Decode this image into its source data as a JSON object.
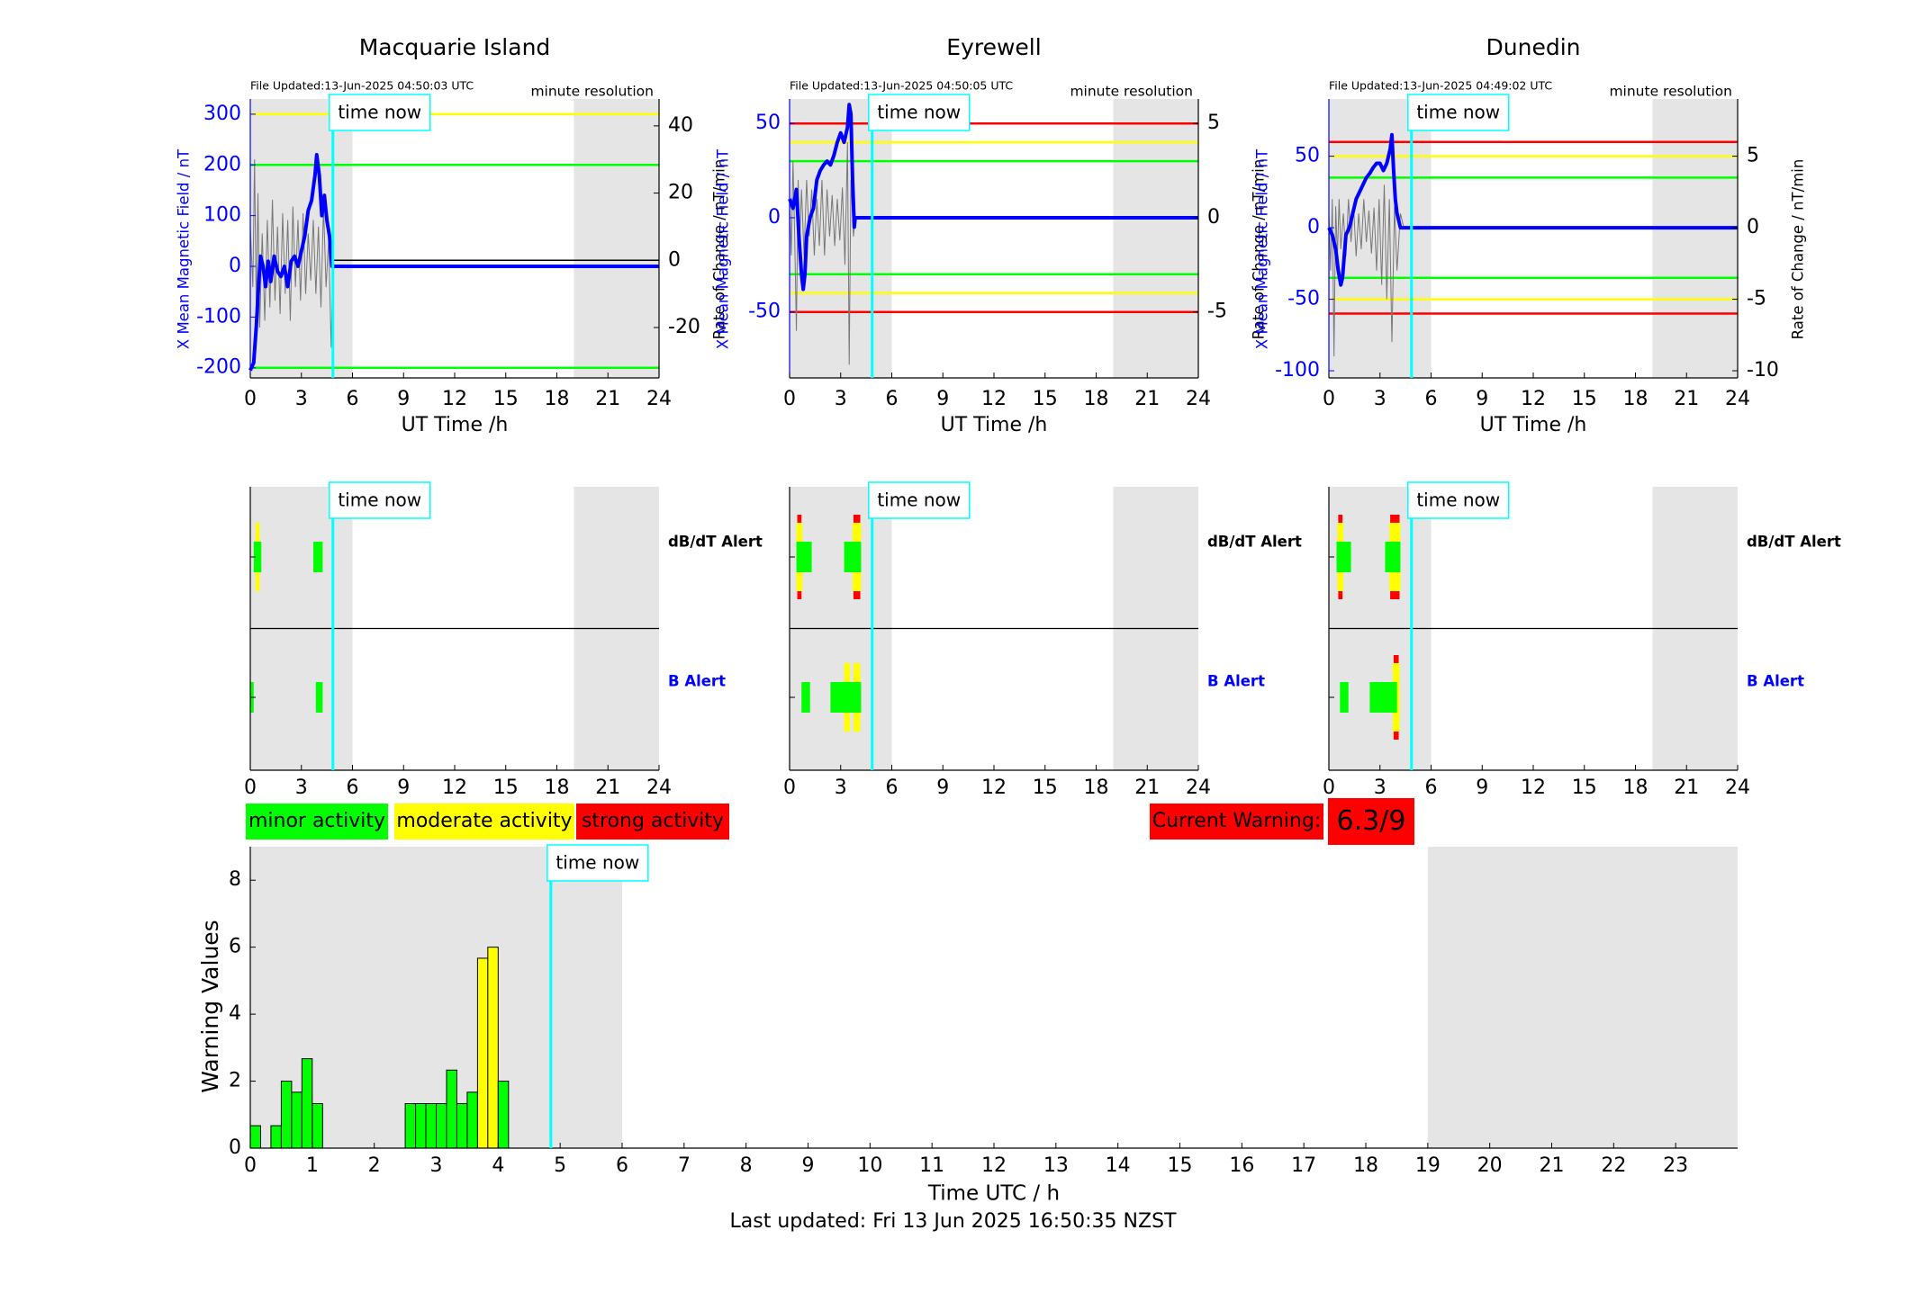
{
  "footer": {
    "last_updated": "Last updated: Fri 13 Jun 2025 16:50:35 NZST"
  },
  "legend": {
    "minor": "minor activity",
    "moderate": "moderate activity",
    "strong": "strong activity"
  },
  "current_warning": {
    "label": "Current Warning:",
    "value": "6.3/9"
  },
  "time_now_label": "time now",
  "colors": {
    "green": "#00ff00",
    "yellow": "#ffff00",
    "red": "#ff0000",
    "cyan": "#00ffff",
    "blue": "#0000ff",
    "shade": "#e5e5e5"
  },
  "chart_data": [
    {
      "type": "line",
      "title": "Macquarie Island",
      "file_updated": "File Updated:13-Jun-2025 04:50:03 UTC",
      "resolution": "minute resolution",
      "xlabel": "UT Time /h",
      "ylabel_left": "X Mean Magnetic Field / nT",
      "ylabel_right": "Rate of Change / nT/min",
      "xlim": [
        0,
        24
      ],
      "xticks": [
        0,
        3,
        6,
        9,
        12,
        15,
        18,
        21,
        24
      ],
      "ylim_left": [
        -220,
        330
      ],
      "yticks_left": [
        -200,
        -100,
        0,
        100,
        200,
        300
      ],
      "ylim_right": [
        -35,
        48
      ],
      "yticks_right": [
        -20,
        0,
        20,
        40
      ],
      "thresholds": [
        {
          "color": "yellow",
          "value": 300
        },
        {
          "color": "green",
          "value": 200
        },
        {
          "color": "green",
          "value": -200
        }
      ],
      "shade": [
        [
          0,
          6
        ],
        [
          19,
          24
        ]
      ],
      "time_now": 4.85,
      "series_x": [
        [
          0,
          -205
        ],
        [
          0.2,
          -190
        ],
        [
          0.35,
          -120
        ],
        [
          0.5,
          -30
        ],
        [
          0.6,
          20
        ],
        [
          0.75,
          0
        ],
        [
          0.9,
          -40
        ],
        [
          1.05,
          10
        ],
        [
          1.2,
          -30
        ],
        [
          1.4,
          20
        ],
        [
          1.6,
          -10
        ],
        [
          1.8,
          -20
        ],
        [
          2.0,
          0
        ],
        [
          2.2,
          -40
        ],
        [
          2.4,
          10
        ],
        [
          2.6,
          20
        ],
        [
          2.8,
          0
        ],
        [
          3.0,
          30
        ],
        [
          3.2,
          60
        ],
        [
          3.4,
          110
        ],
        [
          3.6,
          130
        ],
        [
          3.8,
          180
        ],
        [
          3.9,
          220
        ],
        [
          4.05,
          180
        ],
        [
          4.2,
          100
        ],
        [
          4.35,
          140
        ],
        [
          4.5,
          90
        ],
        [
          4.65,
          60
        ],
        [
          4.8,
          0
        ],
        [
          4.85,
          0
        ],
        [
          24,
          0
        ]
      ],
      "series_rate": [
        [
          0,
          10
        ],
        [
          0.15,
          -8
        ],
        [
          0.25,
          30
        ],
        [
          0.35,
          -15
        ],
        [
          0.45,
          20
        ],
        [
          0.55,
          -20
        ],
        [
          0.7,
          8
        ],
        [
          0.85,
          -18
        ],
        [
          1.0,
          12
        ],
        [
          1.15,
          -14
        ],
        [
          1.3,
          18
        ],
        [
          1.45,
          -12
        ],
        [
          1.6,
          10
        ],
        [
          1.75,
          -16
        ],
        [
          1.9,
          14
        ],
        [
          2.05,
          -10
        ],
        [
          2.2,
          12
        ],
        [
          2.35,
          -18
        ],
        [
          2.5,
          16
        ],
        [
          2.65,
          -8
        ],
        [
          2.8,
          12
        ],
        [
          2.95,
          -12
        ],
        [
          3.1,
          14
        ],
        [
          3.25,
          -10
        ],
        [
          3.4,
          8
        ],
        [
          3.55,
          -6
        ],
        [
          3.7,
          12
        ],
        [
          3.85,
          -10
        ],
        [
          4.0,
          10
        ],
        [
          4.15,
          -14
        ],
        [
          4.3,
          16
        ],
        [
          4.45,
          -8
        ],
        [
          4.6,
          6
        ],
        [
          4.75,
          -26
        ],
        [
          4.85,
          0
        ]
      ]
    },
    {
      "type": "line",
      "title": "Eyrewell",
      "file_updated": "File Updated:13-Jun-2025 04:50:05 UTC",
      "resolution": "minute resolution",
      "xlabel": "UT Time /h",
      "ylabel_left": "X Mean Magnetic Field / nT",
      "ylabel_right": "Rate of Change / nT/min",
      "xlim": [
        0,
        24
      ],
      "xticks": [
        0,
        3,
        6,
        9,
        12,
        15,
        18,
        21,
        24
      ],
      "ylim_left": [
        -85,
        63
      ],
      "yticks_left": [
        -50,
        0,
        50
      ],
      "ylim_right": [
        -8.5,
        6.3
      ],
      "yticks_right": [
        -5,
        0,
        5
      ],
      "thresholds": [
        {
          "color": "red",
          "value": 50
        },
        {
          "color": "yellow",
          "value": 40
        },
        {
          "color": "green",
          "value": 30
        },
        {
          "color": "green",
          "value": -30
        },
        {
          "color": "yellow",
          "value": -40
        },
        {
          "color": "red",
          "value": -50
        }
      ],
      "shade": [
        [
          0,
          6
        ],
        [
          19,
          24
        ]
      ],
      "time_now": 4.85,
      "series_x": [
        [
          0,
          10
        ],
        [
          0.2,
          5
        ],
        [
          0.4,
          15
        ],
        [
          0.55,
          -10
        ],
        [
          0.7,
          -30
        ],
        [
          0.8,
          -38
        ],
        [
          0.9,
          -30
        ],
        [
          1.0,
          -10
        ],
        [
          1.2,
          0
        ],
        [
          1.4,
          5
        ],
        [
          1.6,
          20
        ],
        [
          1.8,
          25
        ],
        [
          2.0,
          28
        ],
        [
          2.2,
          30
        ],
        [
          2.4,
          28
        ],
        [
          2.6,
          33
        ],
        [
          2.8,
          40
        ],
        [
          3.0,
          45
        ],
        [
          3.2,
          40
        ],
        [
          3.4,
          48
        ],
        [
          3.5,
          60
        ],
        [
          3.6,
          55
        ],
        [
          3.7,
          20
        ],
        [
          3.8,
          -5
        ],
        [
          3.85,
          0
        ],
        [
          4.0,
          0
        ],
        [
          24,
          0
        ]
      ],
      "series_rate": [
        [
          0,
          1
        ],
        [
          0.1,
          -2
        ],
        [
          0.2,
          3
        ],
        [
          0.3,
          -1
        ],
        [
          0.4,
          -6
        ],
        [
          0.5,
          2
        ],
        [
          0.6,
          -1
        ],
        [
          0.7,
          1.5
        ],
        [
          0.85,
          -2
        ],
        [
          1.0,
          2
        ],
        [
          1.15,
          -1
        ],
        [
          1.3,
          1.5
        ],
        [
          1.45,
          -2
        ],
        [
          1.6,
          1
        ],
        [
          1.75,
          -1.5
        ],
        [
          1.9,
          2
        ],
        [
          2.05,
          -2
        ],
        [
          2.2,
          1.5
        ],
        [
          2.35,
          -1
        ],
        [
          2.5,
          1.2
        ],
        [
          2.65,
          -1.5
        ],
        [
          2.8,
          1
        ],
        [
          2.95,
          -1.2
        ],
        [
          3.1,
          1.6
        ],
        [
          3.25,
          -2.5
        ],
        [
          3.4,
          4
        ],
        [
          3.5,
          -7.8
        ],
        [
          3.6,
          2
        ],
        [
          3.75,
          -1
        ],
        [
          3.85,
          0
        ]
      ]
    },
    {
      "type": "line",
      "title": "Dunedin",
      "file_updated": "File Updated:13-Jun-2025 04:49:02 UTC",
      "resolution": "minute resolution",
      "xlabel": "UT Time /h",
      "ylabel_left": "X Mean Magnetic Field / nT",
      "ylabel_right": "Rate of Change / nT/min",
      "xlim": [
        0,
        24
      ],
      "xticks": [
        0,
        3,
        6,
        9,
        12,
        15,
        18,
        21,
        24
      ],
      "ylim_left": [
        -105,
        90
      ],
      "yticks_left": [
        -100,
        -50,
        0,
        50
      ],
      "ylim_right": [
        -10.5,
        9
      ],
      "yticks_right": [
        -10,
        -5,
        0,
        5
      ],
      "thresholds": [
        {
          "color": "red",
          "value": 60
        },
        {
          "color": "yellow",
          "value": 50
        },
        {
          "color": "green",
          "value": 35
        },
        {
          "color": "green",
          "value": -35
        },
        {
          "color": "yellow",
          "value": -50
        },
        {
          "color": "red",
          "value": -60
        }
      ],
      "shade": [
        [
          0,
          6
        ],
        [
          19,
          24
        ]
      ],
      "time_now": 4.85,
      "series_x": [
        [
          0,
          0
        ],
        [
          0.2,
          -5
        ],
        [
          0.4,
          -15
        ],
        [
          0.55,
          -30
        ],
        [
          0.7,
          -40
        ],
        [
          0.8,
          -35
        ],
        [
          0.9,
          -20
        ],
        [
          1.0,
          -5
        ],
        [
          1.2,
          0
        ],
        [
          1.4,
          10
        ],
        [
          1.6,
          20
        ],
        [
          1.8,
          25
        ],
        [
          2.0,
          30
        ],
        [
          2.2,
          35
        ],
        [
          2.4,
          38
        ],
        [
          2.6,
          42
        ],
        [
          2.8,
          45
        ],
        [
          3.0,
          45
        ],
        [
          3.2,
          40
        ],
        [
          3.4,
          45
        ],
        [
          3.6,
          55
        ],
        [
          3.7,
          65
        ],
        [
          3.8,
          40
        ],
        [
          3.9,
          20
        ],
        [
          4.0,
          10
        ],
        [
          4.2,
          0
        ],
        [
          4.5,
          0
        ],
        [
          24,
          0
        ]
      ],
      "series_rate": [
        [
          0,
          1
        ],
        [
          0.1,
          -3
        ],
        [
          0.2,
          2
        ],
        [
          0.3,
          -9
        ],
        [
          0.4,
          1.5
        ],
        [
          0.5,
          -2
        ],
        [
          0.6,
          2
        ],
        [
          0.7,
          -1.5
        ],
        [
          0.85,
          1
        ],
        [
          1.0,
          -2
        ],
        [
          1.15,
          2
        ],
        [
          1.3,
          -1
        ],
        [
          1.45,
          1.5
        ],
        [
          1.6,
          -2
        ],
        [
          1.75,
          1
        ],
        [
          1.9,
          -1.5
        ],
        [
          2.05,
          2
        ],
        [
          2.2,
          -1
        ],
        [
          2.35,
          1.2
        ],
        [
          2.5,
          -1.8
        ],
        [
          2.65,
          1.4
        ],
        [
          2.8,
          -3
        ],
        [
          2.95,
          2
        ],
        [
          3.1,
          -4
        ],
        [
          3.25,
          3
        ],
        [
          3.4,
          -5
        ],
        [
          3.55,
          2
        ],
        [
          3.7,
          -8
        ],
        [
          3.85,
          1.5
        ],
        [
          4.0,
          -3
        ],
        [
          4.2,
          1
        ],
        [
          4.4,
          0
        ]
      ]
    },
    {
      "type": "bar",
      "title": "",
      "xlabel": "Time UTC / h",
      "ylabel": "Warning Values",
      "xlim": [
        0,
        24
      ],
      "xticks": [
        0,
        1,
        2,
        3,
        4,
        5,
        6,
        7,
        8,
        9,
        10,
        11,
        12,
        13,
        14,
        15,
        16,
        17,
        18,
        19,
        20,
        21,
        22,
        23
      ],
      "ylim": [
        0,
        9
      ],
      "yticks": [
        0,
        2,
        4,
        6,
        8
      ],
      "shade": [
        [
          0,
          6
        ],
        [
          19,
          24
        ]
      ],
      "time_now": 4.85,
      "bars": [
        {
          "x": 0,
          "value": 0.67,
          "color": "green"
        },
        {
          "x": 0.333,
          "value": 0.67,
          "color": "green"
        },
        {
          "x": 0.5,
          "value": 2.0,
          "color": "green"
        },
        {
          "x": 0.667,
          "value": 1.67,
          "color": "green"
        },
        {
          "x": 0.833,
          "value": 2.67,
          "color": "green"
        },
        {
          "x": 1.0,
          "value": 1.33,
          "color": "green"
        },
        {
          "x": 2.5,
          "value": 1.33,
          "color": "green"
        },
        {
          "x": 2.667,
          "value": 1.33,
          "color": "green"
        },
        {
          "x": 2.833,
          "value": 1.33,
          "color": "green"
        },
        {
          "x": 3.0,
          "value": 1.33,
          "color": "green"
        },
        {
          "x": 3.167,
          "value": 2.33,
          "color": "green"
        },
        {
          "x": 3.333,
          "value": 1.33,
          "color": "green"
        },
        {
          "x": 3.5,
          "value": 1.67,
          "color": "green"
        },
        {
          "x": 3.667,
          "value": 5.67,
          "color": "yellow"
        },
        {
          "x": 3.833,
          "value": 6.0,
          "color": "yellow"
        },
        {
          "x": 4.0,
          "value": 2.0,
          "color": "green"
        }
      ]
    }
  ],
  "alert_panels": [
    {
      "station": "Macquarie Island",
      "dbdt_label": "dB/dT Alert",
      "b_label": "B Alert",
      "xlabel": "",
      "xlim": [
        0,
        24
      ],
      "xticks": [
        0,
        3,
        6,
        9,
        12,
        15,
        18,
        21,
        24
      ],
      "shade": [
        [
          0,
          6
        ],
        [
          19,
          24
        ]
      ],
      "time_now": 4.85,
      "dbdt": [
        {
          "x0": 0.2,
          "x1": 0.65,
          "level": "minor"
        },
        {
          "x0": 0.3,
          "x1": 0.55,
          "level": "moderate"
        },
        {
          "x0": 3.7,
          "x1": 4.25,
          "level": "minor"
        }
      ],
      "b": [
        {
          "x0": 0.0,
          "x1": 0.2,
          "level": "minor"
        },
        {
          "x0": 3.85,
          "x1": 4.25,
          "level": "minor"
        }
      ]
    },
    {
      "station": "Eyrewell",
      "dbdt_label": "dB/dT Alert",
      "b_label": "B Alert",
      "xlim": [
        0,
        24
      ],
      "xticks": [
        0,
        3,
        6,
        9,
        12,
        15,
        18,
        21,
        24
      ],
      "shade": [
        [
          0,
          6
        ],
        [
          19,
          24
        ]
      ],
      "time_now": 4.85,
      "dbdt": [
        {
          "x0": 0.45,
          "x1": 0.7,
          "level": "strong"
        },
        {
          "x0": 0.4,
          "x1": 0.75,
          "level": "moderate"
        },
        {
          "x0": 0.4,
          "x1": 1.3,
          "level": "minor"
        },
        {
          "x0": 3.75,
          "x1": 4.15,
          "level": "strong"
        },
        {
          "x0": 3.7,
          "x1": 4.2,
          "level": "moderate"
        },
        {
          "x0": 3.2,
          "x1": 4.2,
          "level": "minor"
        }
      ],
      "b": [
        {
          "x0": 0.7,
          "x1": 1.2,
          "level": "minor"
        },
        {
          "x0": 2.4,
          "x1": 4.2,
          "level": "minor"
        },
        {
          "x0": 3.2,
          "x1": 3.55,
          "level": "moderate"
        },
        {
          "x0": 3.75,
          "x1": 4.15,
          "level": "moderate"
        }
      ]
    },
    {
      "station": "Dunedin",
      "dbdt_label": "dB/dT Alert",
      "b_label": "B Alert",
      "xlim": [
        0,
        24
      ],
      "xticks": [
        0,
        3,
        6,
        9,
        12,
        15,
        18,
        21,
        24
      ],
      "shade": [
        [
          0,
          6
        ],
        [
          19,
          24
        ]
      ],
      "time_now": 4.85,
      "dbdt": [
        {
          "x0": 0.55,
          "x1": 0.8,
          "level": "strong"
        },
        {
          "x0": 0.5,
          "x1": 0.85,
          "level": "moderate"
        },
        {
          "x0": 0.45,
          "x1": 1.3,
          "level": "minor"
        },
        {
          "x0": 3.6,
          "x1": 4.15,
          "level": "strong"
        },
        {
          "x0": 3.55,
          "x1": 4.2,
          "level": "moderate"
        },
        {
          "x0": 3.3,
          "x1": 4.2,
          "level": "minor"
        }
      ],
      "b": [
        {
          "x0": 0.65,
          "x1": 1.15,
          "level": "minor"
        },
        {
          "x0": 2.4,
          "x1": 4.0,
          "level": "minor"
        },
        {
          "x0": 3.8,
          "x1": 4.1,
          "level": "strong"
        },
        {
          "x0": 3.75,
          "x1": 4.15,
          "level": "moderate"
        }
      ]
    }
  ]
}
